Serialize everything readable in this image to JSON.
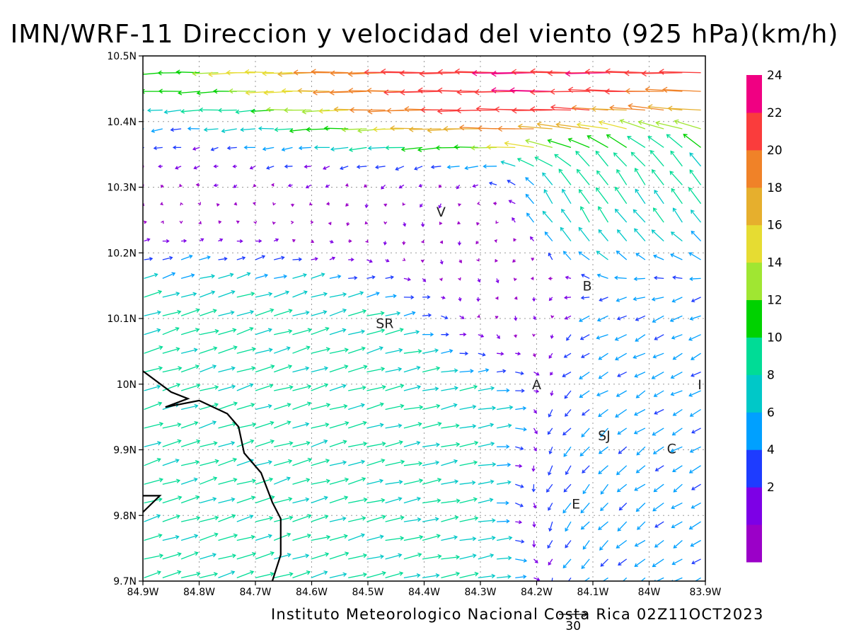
{
  "title": "IMN/WRF-11 Direccion y velocidad del viento (925 hPa)(km/h)",
  "credit": "Instituto Meteorologico Nacional Costa Rica 02Z11OCT2023",
  "reference_vector_label": "30",
  "map": {
    "lon_range": [
      -84.9,
      -83.9
    ],
    "lat_range": [
      9.7,
      10.5
    ],
    "x_ticks": [
      "84.9W",
      "84.8W",
      "84.7W",
      "84.6W",
      "84.5W",
      "84.4W",
      "84.3W",
      "84.2W",
      "84.1W",
      "84W",
      "83.9W"
    ],
    "y_ticks": [
      "9.7N",
      "9.8N",
      "9.9N",
      "10N",
      "10.1N",
      "10.2N",
      "10.3N",
      "10.4N",
      "10.5N"
    ],
    "grid": "dotted",
    "places": [
      {
        "label": "V",
        "lon": -84.37,
        "lat": 10.263
      },
      {
        "label": "SR",
        "lon": -84.47,
        "lat": 10.093
      },
      {
        "label": "B",
        "lon": -84.11,
        "lat": 10.15
      },
      {
        "label": "A",
        "lon": -84.2,
        "lat": 10.0
      },
      {
        "label": "I",
        "lon": -83.91,
        "lat": 10.0
      },
      {
        "label": "SJ",
        "lon": -84.08,
        "lat": 9.922
      },
      {
        "label": "C",
        "lon": -83.96,
        "lat": 9.902
      },
      {
        "label": "E",
        "lon": -84.13,
        "lat": 9.818
      }
    ],
    "coastline": [
      [
        [
          -84.9,
          10.02
        ],
        [
          -84.85,
          9.988
        ],
        [
          -84.82,
          9.978
        ],
        [
          -84.86,
          9.965
        ],
        [
          -84.8,
          9.975
        ],
        [
          -84.75,
          9.955
        ],
        [
          -84.73,
          9.935
        ],
        [
          -84.72,
          9.895
        ],
        [
          -84.69,
          9.865
        ],
        [
          -84.67,
          9.82
        ],
        [
          -84.655,
          9.795
        ],
        [
          -84.655,
          9.74
        ],
        [
          -84.67,
          9.7
        ]
      ],
      [
        [
          -84.9,
          9.805
        ],
        [
          -84.87,
          9.83
        ],
        [
          -84.9,
          9.83
        ]
      ]
    ]
  },
  "legend": {
    "title": "km/h",
    "bins": [
      {
        "label": "",
        "color": "#9b00c8"
      },
      {
        "label": "2",
        "color": "#7d00e6"
      },
      {
        "label": "4",
        "color": "#1e3cff"
      },
      {
        "label": "6",
        "color": "#00a0ff"
      },
      {
        "label": "8",
        "color": "#00c8c8"
      },
      {
        "label": "10",
        "color": "#00dc96"
      },
      {
        "label": "12",
        "color": "#00d200"
      },
      {
        "label": "14",
        "color": "#a0e632"
      },
      {
        "label": "16",
        "color": "#e6dc32"
      },
      {
        "label": "18",
        "color": "#e6af2d"
      },
      {
        "label": "20",
        "color": "#f08228"
      },
      {
        "label": "22",
        "color": "#fa3c3c"
      },
      {
        "label": "24",
        "color": "#f00082"
      }
    ]
  },
  "wind_regions": [
    {
      "name": "northern jet",
      "lon": [
        -84.75,
        -84.05
      ],
      "lat": [
        10.36,
        10.49
      ],
      "u": -24,
      "v": 0,
      "max_speed": 25
    },
    {
      "name": "northwest calm",
      "lon": [
        -84.9,
        -84.45
      ],
      "lat": [
        10.22,
        10.43
      ],
      "u": -2,
      "v": -1,
      "max_speed": 6
    },
    {
      "name": "north-central calm",
      "lon": [
        -84.55,
        -84.25
      ],
      "lat": [
        10.2,
        10.35
      ],
      "u": 0,
      "v": -2,
      "max_speed": 7
    },
    {
      "name": "northeast outflow",
      "lon": [
        -84.2,
        -83.9
      ],
      "lat": [
        10.2,
        10.35
      ],
      "u": -6,
      "v": 10,
      "max_speed": 15
    },
    {
      "name": "western onshore",
      "lon": [
        -84.9,
        -84.5
      ],
      "lat": [
        9.7,
        10.2
      ],
      "u": 10,
      "v": 3,
      "max_speed": 14
    },
    {
      "name": "central westerly",
      "lon": [
        -84.5,
        -84.25
      ],
      "lat": [
        9.7,
        10.05
      ],
      "u": 10,
      "v": 2,
      "max_speed": 13
    },
    {
      "name": "central calm",
      "lon": [
        -84.35,
        -84.2
      ],
      "lat": [
        10.05,
        10.2
      ],
      "u": 0,
      "v": -2,
      "max_speed": 6
    },
    {
      "name": "eastern easterly",
      "lon": [
        -84.1,
        -83.9
      ],
      "lat": [
        9.7,
        10.2
      ],
      "u": -6,
      "v": -3,
      "max_speed": 12
    },
    {
      "name": "southeast convergence",
      "lon": [
        -84.2,
        -84.0
      ],
      "lat": [
        9.75,
        9.95
      ],
      "u": -4,
      "v": -6,
      "max_speed": 14
    }
  ]
}
